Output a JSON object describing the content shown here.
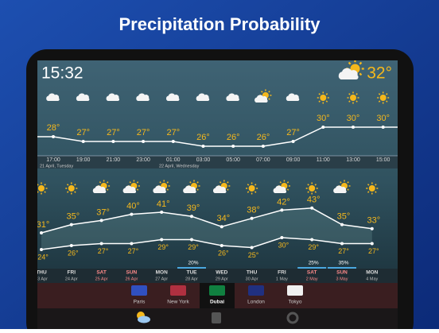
{
  "header": {
    "title": "Precipitation Probability"
  },
  "status": {
    "time": "15:32",
    "temperature": "32°",
    "icon": "partly"
  },
  "hourly": {
    "times": [
      "17:00",
      "19:00",
      "21:00",
      "23:00",
      "01:00",
      "03:00",
      "05:00",
      "07:00",
      "09:00",
      "11:00",
      "13:00",
      "15:00"
    ],
    "dates": [
      "21 April, Tuesday",
      "22 April, Wednesday"
    ],
    "icons": [
      "cloud",
      "cloud",
      "cloud",
      "cloud",
      "cloud",
      "cloud",
      "cloud",
      "partly",
      "cloud",
      "sun",
      "sun",
      "sun"
    ],
    "values": [
      28,
      27,
      27,
      27,
      27,
      26,
      26,
      26,
      27,
      30,
      30,
      30
    ],
    "value_labels": [
      "28°",
      "27°",
      "27°",
      "27°",
      "27°",
      "26°",
      "26°",
      "26°",
      "27°",
      "30°",
      "30°",
      "30°"
    ]
  },
  "daily": {
    "days": [
      "THU",
      "FRI",
      "SAT",
      "SUN",
      "MON",
      "TUE",
      "WED",
      "THU",
      "FRI",
      "SAT",
      "SUN",
      "MON"
    ],
    "dates": [
      "23 Apr",
      "24 Apr",
      "25 Apr",
      "26 Apr",
      "27 Apr",
      "28 Apr",
      "29 Apr",
      "30 Apr",
      "1 May",
      "2 May",
      "3 May",
      "4 May"
    ],
    "icons": [
      "sun",
      "sun",
      "partly",
      "partly",
      "partly",
      "partly",
      "partly",
      "sun",
      "partly",
      "sun",
      "partly",
      "sun"
    ],
    "highs": [
      31,
      35,
      37,
      40,
      41,
      39,
      34,
      38,
      42,
      43,
      35,
      33
    ],
    "high_labels": [
      "31°",
      "35°",
      "37°",
      "40°",
      "41°",
      "39°",
      "34°",
      "38°",
      "42°",
      "43°",
      "35°",
      "33°"
    ],
    "lows": [
      24,
      26,
      27,
      27,
      29,
      29,
      26,
      25,
      30,
      29,
      27,
      27
    ],
    "low_labels": [
      "24°",
      "26°",
      "27°",
      "27°",
      "29°",
      "29°",
      "26°",
      "25°",
      "30°",
      "29°",
      "27°",
      "27°"
    ],
    "precipitation": [
      {
        "day": 5,
        "label": "20%"
      },
      {
        "day": 9,
        "label": "25%"
      },
      {
        "day": 10,
        "label": "35%"
      }
    ]
  },
  "cities": [
    "Paris",
    "New York",
    "Dubai",
    "London",
    "Tokyo"
  ],
  "selected_city": 2
}
